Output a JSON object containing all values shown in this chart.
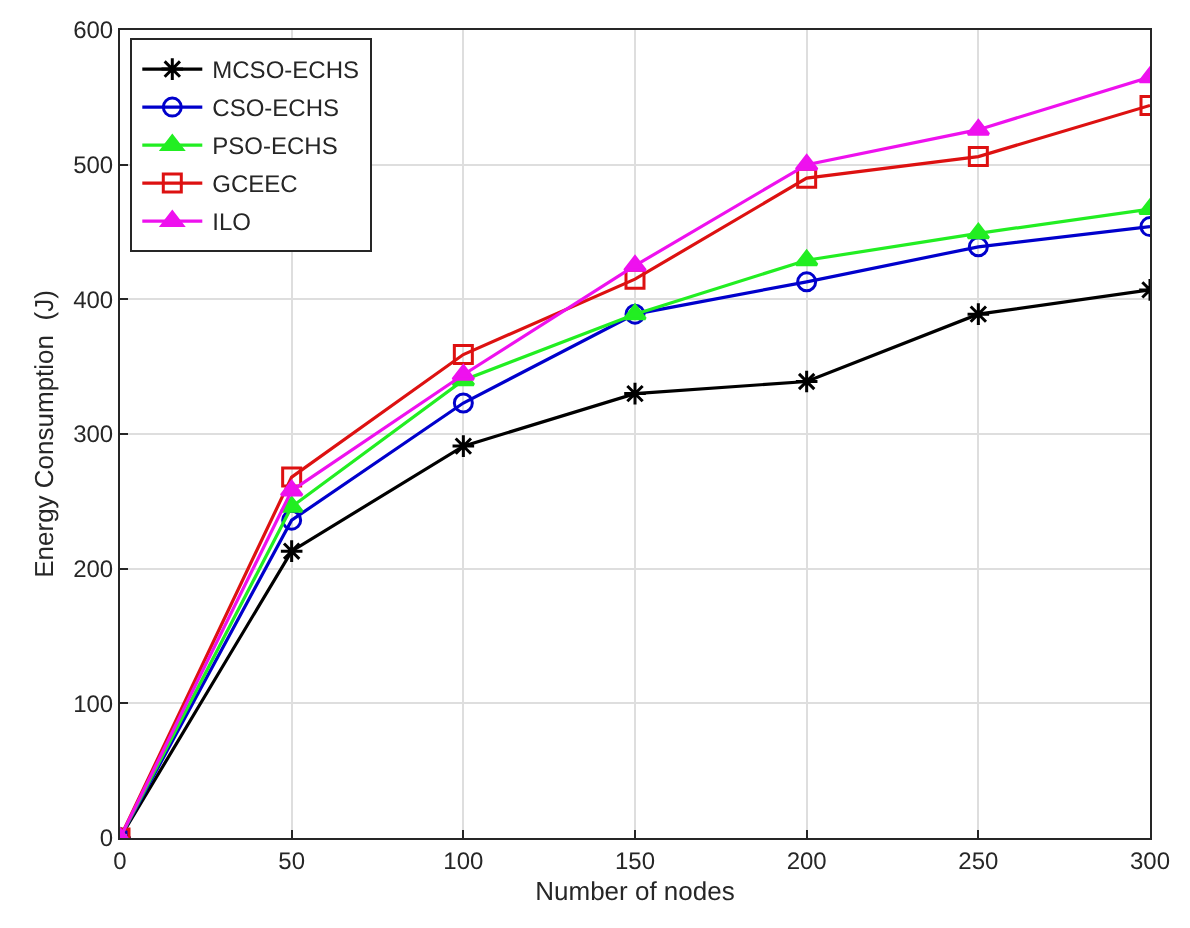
{
  "chart_data": {
    "type": "line",
    "xlabel": "Number of nodes",
    "ylabel": "Energy Consumption  (J)",
    "x": [
      0,
      50,
      100,
      150,
      200,
      250,
      300
    ],
    "xlim": [
      0,
      300
    ],
    "xticks": [
      0,
      50,
      100,
      150,
      200,
      250,
      300
    ],
    "ylim": [
      0,
      600
    ],
    "yticks": [
      0,
      100,
      200,
      300,
      400,
      500,
      600
    ],
    "grid": true,
    "legend": "top left",
    "line_style": "solid",
    "series": [
      {
        "name": "MCSO-ECHS",
        "color": "#000000",
        "marker": "cross",
        "values": [
          0,
          213,
          291,
          330,
          339,
          389,
          407
        ]
      },
      {
        "name": "CSO-ECHS",
        "color": "#0000cc",
        "marker": "circle",
        "values": [
          0,
          236,
          323,
          389,
          413,
          439,
          454
        ]
      },
      {
        "name": "PSO-ECHS",
        "color": "#22ee22",
        "marker": "triangle",
        "values": [
          0,
          246,
          340,
          389,
          429,
          449,
          467
        ]
      },
      {
        "name": "GCEEC",
        "color": "#dd1111",
        "marker": "square",
        "values": [
          0,
          268,
          359,
          415,
          490,
          506,
          544
        ]
      },
      {
        "name": "ILO",
        "color": "#ee11ee",
        "marker": "triangle",
        "values": [
          0,
          258,
          344,
          425,
          500,
          526,
          565
        ]
      }
    ]
  }
}
